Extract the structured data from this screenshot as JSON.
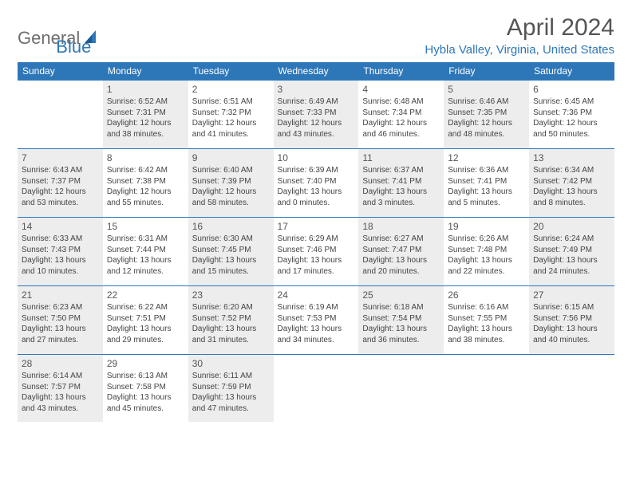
{
  "logo": {
    "text1": "General",
    "text2": "Blue"
  },
  "header": {
    "month_title": "April 2024",
    "location": "Hybla Valley, Virginia, United States"
  },
  "colors": {
    "header_bg": "#2d77b9",
    "header_text": "#ffffff",
    "shaded_bg": "#ededed",
    "border": "#2d77b9",
    "title_color": "#555555",
    "body_text": "#444444"
  },
  "day_names": [
    "Sunday",
    "Monday",
    "Tuesday",
    "Wednesday",
    "Thursday",
    "Friday",
    "Saturday"
  ],
  "weeks": [
    [
      {
        "empty": true
      },
      {
        "num": "1",
        "shaded": true,
        "sunrise": "Sunrise: 6:52 AM",
        "sunset": "Sunset: 7:31 PM",
        "day1": "Daylight: 12 hours",
        "day2": "and 38 minutes."
      },
      {
        "num": "2",
        "sunrise": "Sunrise: 6:51 AM",
        "sunset": "Sunset: 7:32 PM",
        "day1": "Daylight: 12 hours",
        "day2": "and 41 minutes."
      },
      {
        "num": "3",
        "shaded": true,
        "sunrise": "Sunrise: 6:49 AM",
        "sunset": "Sunset: 7:33 PM",
        "day1": "Daylight: 12 hours",
        "day2": "and 43 minutes."
      },
      {
        "num": "4",
        "sunrise": "Sunrise: 6:48 AM",
        "sunset": "Sunset: 7:34 PM",
        "day1": "Daylight: 12 hours",
        "day2": "and 46 minutes."
      },
      {
        "num": "5",
        "shaded": true,
        "sunrise": "Sunrise: 6:46 AM",
        "sunset": "Sunset: 7:35 PM",
        "day1": "Daylight: 12 hours",
        "day2": "and 48 minutes."
      },
      {
        "num": "6",
        "sunrise": "Sunrise: 6:45 AM",
        "sunset": "Sunset: 7:36 PM",
        "day1": "Daylight: 12 hours",
        "day2": "and 50 minutes."
      }
    ],
    [
      {
        "num": "7",
        "shaded": true,
        "sunrise": "Sunrise: 6:43 AM",
        "sunset": "Sunset: 7:37 PM",
        "day1": "Daylight: 12 hours",
        "day2": "and 53 minutes."
      },
      {
        "num": "8",
        "sunrise": "Sunrise: 6:42 AM",
        "sunset": "Sunset: 7:38 PM",
        "day1": "Daylight: 12 hours",
        "day2": "and 55 minutes."
      },
      {
        "num": "9",
        "shaded": true,
        "sunrise": "Sunrise: 6:40 AM",
        "sunset": "Sunset: 7:39 PM",
        "day1": "Daylight: 12 hours",
        "day2": "and 58 minutes."
      },
      {
        "num": "10",
        "sunrise": "Sunrise: 6:39 AM",
        "sunset": "Sunset: 7:40 PM",
        "day1": "Daylight: 13 hours",
        "day2": "and 0 minutes."
      },
      {
        "num": "11",
        "shaded": true,
        "sunrise": "Sunrise: 6:37 AM",
        "sunset": "Sunset: 7:41 PM",
        "day1": "Daylight: 13 hours",
        "day2": "and 3 minutes."
      },
      {
        "num": "12",
        "sunrise": "Sunrise: 6:36 AM",
        "sunset": "Sunset: 7:41 PM",
        "day1": "Daylight: 13 hours",
        "day2": "and 5 minutes."
      },
      {
        "num": "13",
        "shaded": true,
        "sunrise": "Sunrise: 6:34 AM",
        "sunset": "Sunset: 7:42 PM",
        "day1": "Daylight: 13 hours",
        "day2": "and 8 minutes."
      }
    ],
    [
      {
        "num": "14",
        "shaded": true,
        "sunrise": "Sunrise: 6:33 AM",
        "sunset": "Sunset: 7:43 PM",
        "day1": "Daylight: 13 hours",
        "day2": "and 10 minutes."
      },
      {
        "num": "15",
        "sunrise": "Sunrise: 6:31 AM",
        "sunset": "Sunset: 7:44 PM",
        "day1": "Daylight: 13 hours",
        "day2": "and 12 minutes."
      },
      {
        "num": "16",
        "shaded": true,
        "sunrise": "Sunrise: 6:30 AM",
        "sunset": "Sunset: 7:45 PM",
        "day1": "Daylight: 13 hours",
        "day2": "and 15 minutes."
      },
      {
        "num": "17",
        "sunrise": "Sunrise: 6:29 AM",
        "sunset": "Sunset: 7:46 PM",
        "day1": "Daylight: 13 hours",
        "day2": "and 17 minutes."
      },
      {
        "num": "18",
        "shaded": true,
        "sunrise": "Sunrise: 6:27 AM",
        "sunset": "Sunset: 7:47 PM",
        "day1": "Daylight: 13 hours",
        "day2": "and 20 minutes."
      },
      {
        "num": "19",
        "sunrise": "Sunrise: 6:26 AM",
        "sunset": "Sunset: 7:48 PM",
        "day1": "Daylight: 13 hours",
        "day2": "and 22 minutes."
      },
      {
        "num": "20",
        "shaded": true,
        "sunrise": "Sunrise: 6:24 AM",
        "sunset": "Sunset: 7:49 PM",
        "day1": "Daylight: 13 hours",
        "day2": "and 24 minutes."
      }
    ],
    [
      {
        "num": "21",
        "shaded": true,
        "sunrise": "Sunrise: 6:23 AM",
        "sunset": "Sunset: 7:50 PM",
        "day1": "Daylight: 13 hours",
        "day2": "and 27 minutes."
      },
      {
        "num": "22",
        "sunrise": "Sunrise: 6:22 AM",
        "sunset": "Sunset: 7:51 PM",
        "day1": "Daylight: 13 hours",
        "day2": "and 29 minutes."
      },
      {
        "num": "23",
        "shaded": true,
        "sunrise": "Sunrise: 6:20 AM",
        "sunset": "Sunset: 7:52 PM",
        "day1": "Daylight: 13 hours",
        "day2": "and 31 minutes."
      },
      {
        "num": "24",
        "sunrise": "Sunrise: 6:19 AM",
        "sunset": "Sunset: 7:53 PM",
        "day1": "Daylight: 13 hours",
        "day2": "and 34 minutes."
      },
      {
        "num": "25",
        "shaded": true,
        "sunrise": "Sunrise: 6:18 AM",
        "sunset": "Sunset: 7:54 PM",
        "day1": "Daylight: 13 hours",
        "day2": "and 36 minutes."
      },
      {
        "num": "26",
        "sunrise": "Sunrise: 6:16 AM",
        "sunset": "Sunset: 7:55 PM",
        "day1": "Daylight: 13 hours",
        "day2": "and 38 minutes."
      },
      {
        "num": "27",
        "shaded": true,
        "sunrise": "Sunrise: 6:15 AM",
        "sunset": "Sunset: 7:56 PM",
        "day1": "Daylight: 13 hours",
        "day2": "and 40 minutes."
      }
    ],
    [
      {
        "num": "28",
        "shaded": true,
        "sunrise": "Sunrise: 6:14 AM",
        "sunset": "Sunset: 7:57 PM",
        "day1": "Daylight: 13 hours",
        "day2": "and 43 minutes."
      },
      {
        "num": "29",
        "sunrise": "Sunrise: 6:13 AM",
        "sunset": "Sunset: 7:58 PM",
        "day1": "Daylight: 13 hours",
        "day2": "and 45 minutes."
      },
      {
        "num": "30",
        "shaded": true,
        "sunrise": "Sunrise: 6:11 AM",
        "sunset": "Sunset: 7:59 PM",
        "day1": "Daylight: 13 hours",
        "day2": "and 47 minutes."
      },
      {
        "empty": true
      },
      {
        "empty": true
      },
      {
        "empty": true
      },
      {
        "empty": true
      }
    ]
  ]
}
